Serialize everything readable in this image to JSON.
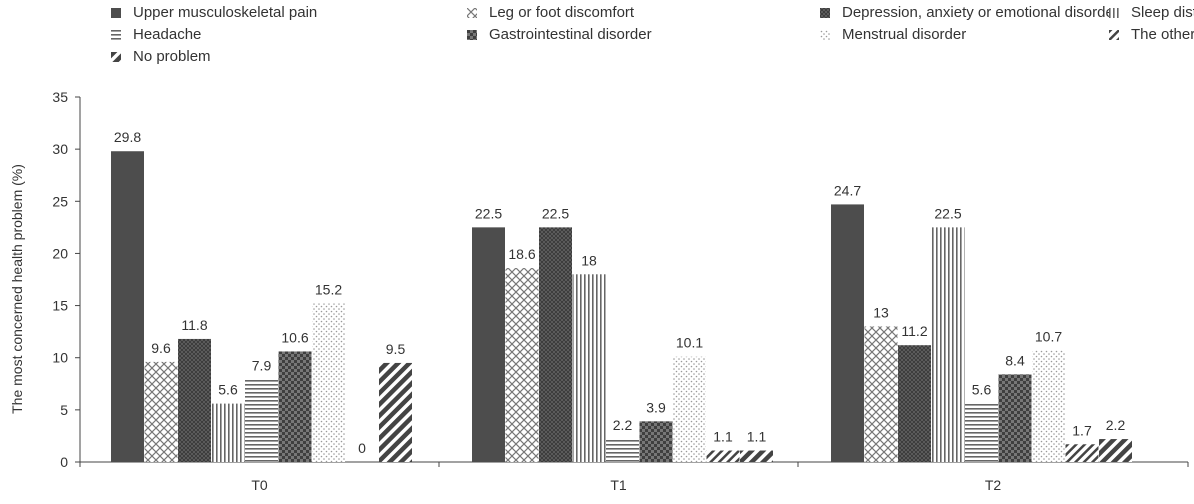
{
  "chart_data": {
    "type": "bar",
    "title": "",
    "xlabel": "",
    "ylabel": "The most concerned health problem (%)",
    "ylim": [
      0,
      35
    ],
    "yticks": [
      0,
      5,
      10,
      15,
      20,
      25,
      30,
      35
    ],
    "categories": [
      "T0",
      "T1",
      "T2"
    ],
    "legend_position": "top",
    "series": [
      {
        "name": "Upper musculoskeletal pain",
        "pattern": "solid",
        "color": "#4d4d4d",
        "values": [
          29.8,
          22.5,
          24.7
        ]
      },
      {
        "name": "Leg or foot discomfort",
        "pattern": "crosshatch",
        "color": "#8a8a8a",
        "values": [
          9.6,
          18.6,
          13
        ]
      },
      {
        "name": "Depression, anxiety or emotional disorder",
        "pattern": "dense-grid",
        "color": "#555555",
        "values": [
          11.8,
          22.5,
          11.2
        ]
      },
      {
        "name": "Sleep disturbance",
        "pattern": "vertical",
        "color": "#777777",
        "values": [
          5.6,
          18,
          22.5
        ]
      },
      {
        "name": "Headache",
        "pattern": "horizontal",
        "color": "#777777",
        "values": [
          7.9,
          2.2,
          5.6
        ]
      },
      {
        "name": "Gastrointestinal disorder",
        "pattern": "checker",
        "color": "#5a5a5a",
        "values": [
          10.6,
          3.9,
          8.4
        ]
      },
      {
        "name": "Menstrual disorder",
        "pattern": "dots",
        "color": "#9a9a9a",
        "values": [
          15.2,
          10.1,
          10.7
        ]
      },
      {
        "name": "The others",
        "pattern": "diag-thin",
        "color": "#444444",
        "values": [
          0,
          1.1,
          1.7
        ]
      },
      {
        "name": "No problem",
        "pattern": "diag-thick",
        "color": "#4a4a4a",
        "values": [
          9.5,
          1.1,
          2.2
        ]
      }
    ]
  }
}
